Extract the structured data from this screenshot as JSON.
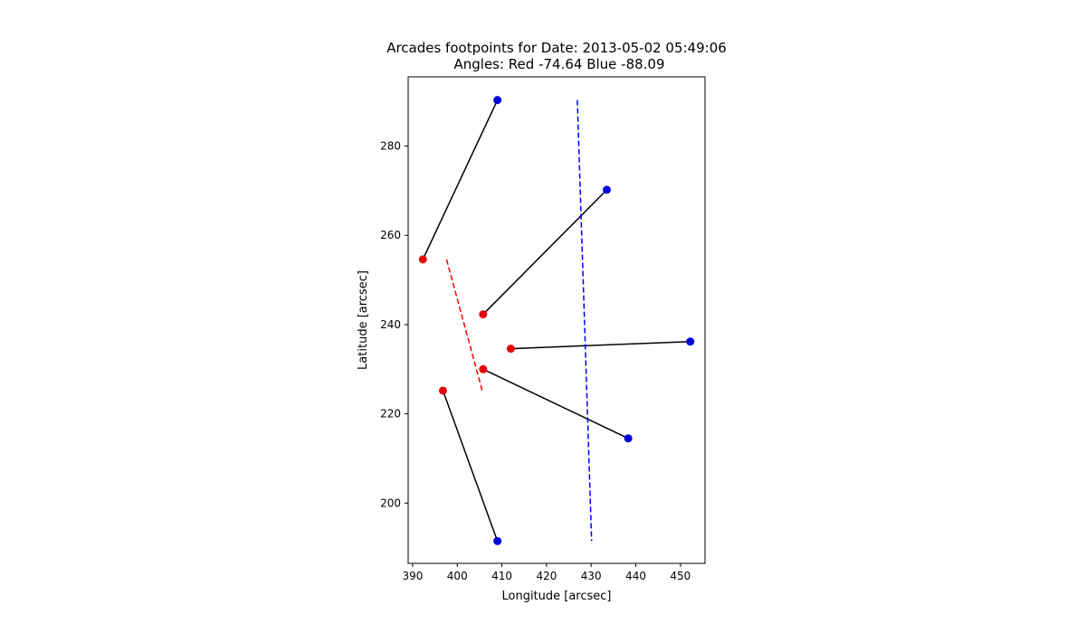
{
  "chart_data": {
    "type": "scatter",
    "title": "Arcades footpoints for Date: 2013-05-02 05:49:06",
    "subtitle": "Angles: Red -74.64 Blue -88.09",
    "xlabel": "Longitude [arcsec]",
    "ylabel": "Latitude [arcsec]",
    "xlim": [
      389,
      455.5
    ],
    "ylim": [
      186.5,
      295.5
    ],
    "xticks": [
      390,
      400,
      410,
      420,
      430,
      440,
      450
    ],
    "yticks": [
      200,
      220,
      240,
      260,
      280
    ],
    "grid": false,
    "legend": "none",
    "colors": {
      "red_points": "#e8000b",
      "blue_points": "#0000dd",
      "red_fit": "#ff0000",
      "blue_fit": "#0000ff",
      "connector": "#000000"
    },
    "arcades": [
      {
        "red": [
          392.3,
          254.6
        ],
        "blue": [
          409.0,
          290.3
        ]
      },
      {
        "red": [
          405.8,
          242.3
        ],
        "blue": [
          433.5,
          270.2
        ]
      },
      {
        "red": [
          412.0,
          234.6
        ],
        "blue": [
          452.2,
          236.2
        ]
      },
      {
        "red": [
          405.8,
          230.0
        ],
        "blue": [
          438.3,
          214.5
        ]
      },
      {
        "red": [
          396.8,
          225.2
        ],
        "blue": [
          409.0,
          191.5
        ]
      }
    ],
    "red_fit_line": [
      [
        397.6,
        254.6
      ],
      [
        405.6,
        225.2
      ]
    ],
    "blue_fit_line": [
      [
        426.9,
        290.3
      ],
      [
        430.1,
        191.5
      ]
    ]
  }
}
